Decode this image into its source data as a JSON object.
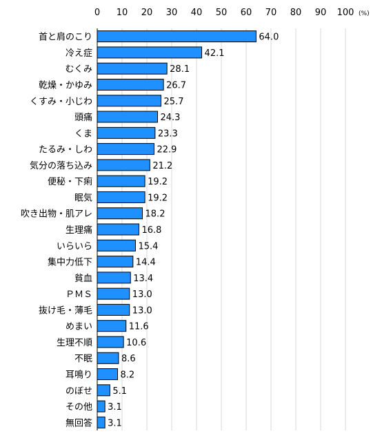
{
  "chart_data": {
    "type": "bar",
    "orientation": "horizontal",
    "title": "",
    "xlabel": "",
    "ylabel": "",
    "unit": "(%)",
    "xlim": [
      0,
      100
    ],
    "x_ticks": [
      "0",
      "10",
      "20",
      "30",
      "40",
      "50",
      "60",
      "70",
      "80",
      "90",
      "100"
    ],
    "grid": true,
    "legend": "none",
    "bar_color": "#1e90ff",
    "categories": [
      "首と肩のこり",
      "冷え症",
      "むくみ",
      "乾燥・かゆみ",
      "くすみ・小じわ",
      "頭痛",
      "くま",
      "たるみ・しわ",
      "気分の落ち込み",
      "便秘・下痢",
      "眠気",
      "吹き出物・肌アレ",
      "生理痛",
      "いらいら",
      "集中力低下",
      "貧血",
      "ＰＭＳ",
      "抜け毛・薄毛",
      "めまい",
      "生理不順",
      "不眠",
      "耳鳴り",
      "のぼせ",
      "その他",
      "無回答"
    ],
    "values": [
      64.0,
      42.1,
      28.1,
      26.7,
      25.7,
      24.3,
      23.3,
      22.9,
      21.2,
      19.2,
      19.2,
      18.2,
      16.8,
      15.4,
      14.4,
      13.4,
      13.0,
      13.0,
      11.6,
      10.6,
      8.6,
      8.2,
      5.1,
      3.1,
      3.1
    ],
    "value_labels": [
      "64.0",
      "42.1",
      "28.1",
      "26.7",
      "25.7",
      "24.3",
      "23.3",
      "22.9",
      "21.2",
      "19.2",
      "19.2",
      "18.2",
      "16.8",
      "15.4",
      "14.4",
      "13.4",
      "13.0",
      "13.0",
      "11.6",
      "10.6",
      "8.6",
      "8.2",
      "5.1",
      "3.1",
      "3.1"
    ]
  }
}
